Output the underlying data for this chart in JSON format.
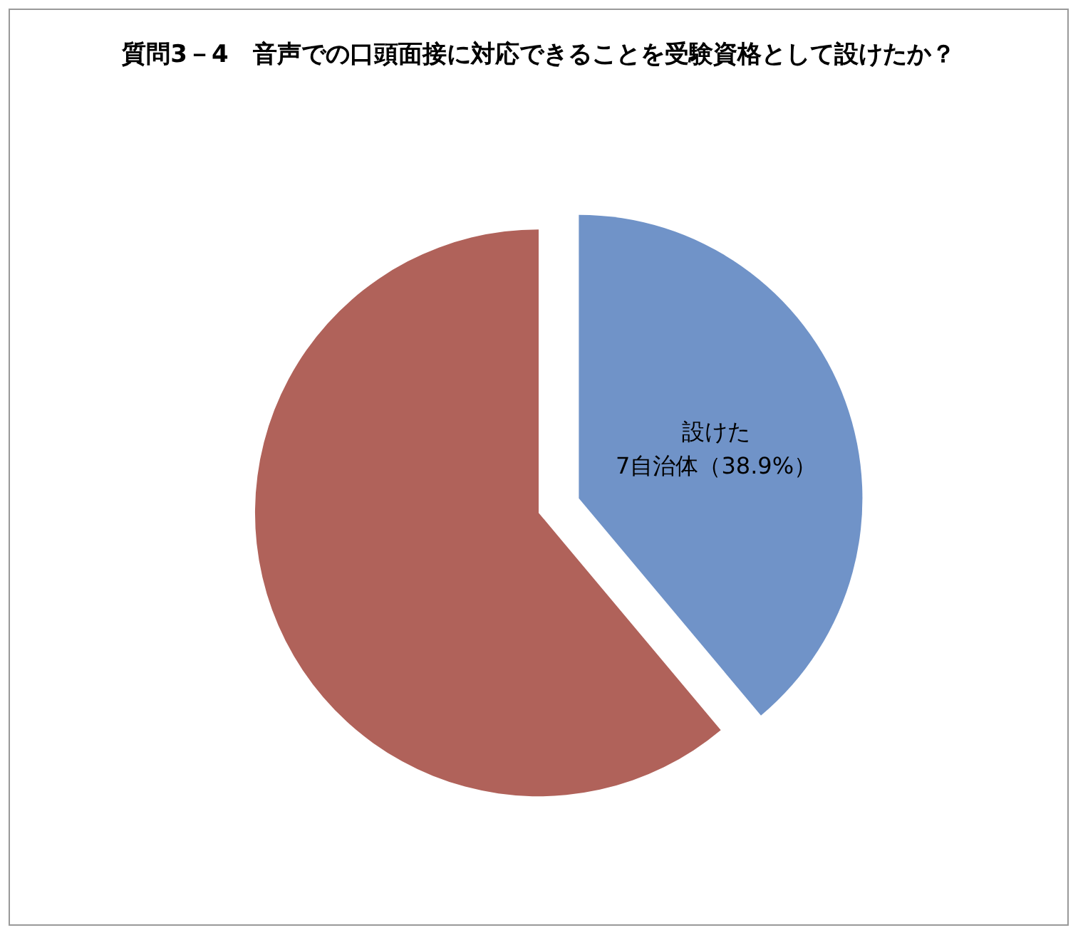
{
  "chart_data": {
    "type": "pie",
    "title": "質問3－4　音声での口頭面接に対応できることを受験資格として設けたか？",
    "categories": [
      "設けた",
      null
    ],
    "values": [
      38.9,
      61.1
    ],
    "colors": [
      "#7093c8",
      "#b0625a"
    ],
    "value_labels": [
      "7自治体（38.9%）",
      null
    ],
    "legend": false
  }
}
